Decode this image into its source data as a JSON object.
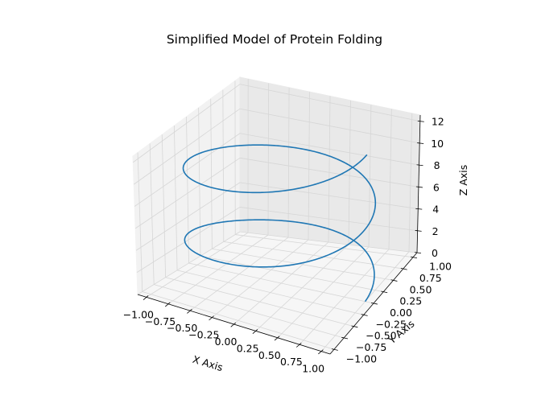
{
  "chart_data": {
    "type": "line3d",
    "title": "Simplified Model of Protein Folding",
    "xlabel": "X Axis",
    "ylabel": "Y Axis",
    "zlabel": "Z Axis",
    "xlim": [
      -1.1,
      1.1
    ],
    "ylim": [
      -1.1,
      1.1
    ],
    "zlim": [
      0,
      12.566
    ],
    "x_ticks": [
      "−1.00",
      "−0.75",
      "−0.50",
      "−0.25",
      "0.00",
      "0.25",
      "0.50",
      "0.75",
      "1.00"
    ],
    "y_ticks": [
      "−1.00",
      "−0.75",
      "−0.50",
      "−0.25",
      "0.00",
      "0.25",
      "0.50",
      "0.75",
      "1.00"
    ],
    "z_ticks": [
      "0",
      "2",
      "4",
      "6",
      "8",
      "10",
      "12"
    ],
    "grid": true,
    "series": [
      {
        "color": "#1f77b4",
        "parametric": {
          "x": "cos(t)",
          "y": "sin(t)",
          "z": "t",
          "t_range": [
            0,
            12.566
          ]
        }
      }
    ]
  }
}
